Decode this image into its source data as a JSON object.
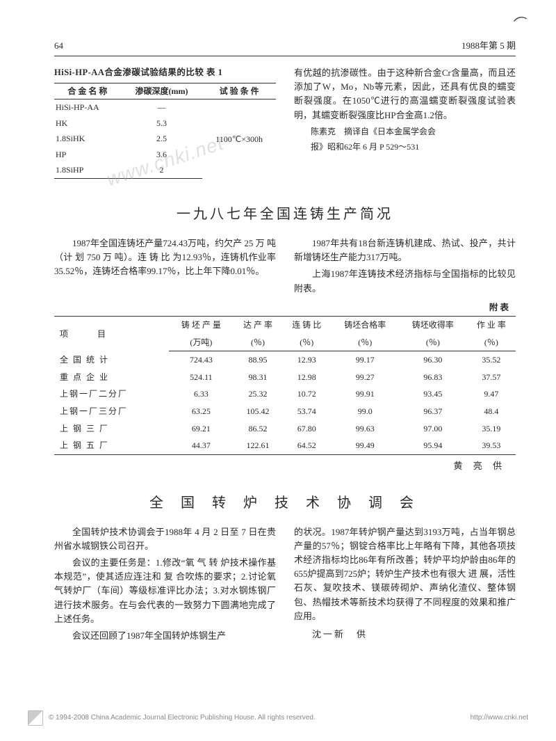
{
  "page_number": "64",
  "issue": "1988年第 5 期",
  "table1": {
    "title": "HiSi-HP-AA合金渗碳试验结果的比较 表 1",
    "headers": [
      "合 金 名 称",
      "渗碳深度(mm)",
      "试 验 条 件"
    ],
    "condition": "1100℃×300h",
    "rows": [
      {
        "name": "HiSi-HP-AA",
        "depth": "—"
      },
      {
        "name": "HK",
        "depth": "5.3"
      },
      {
        "name": "1.8SiHK",
        "depth": "2.5"
      },
      {
        "name": "HP",
        "depth": "3.6"
      },
      {
        "name": "1.8SiHP",
        "depth": "2"
      }
    ]
  },
  "top_right_paras": [
    "有优越的抗渗碳性。由于这种新合金Cr含量高，而且还添加了W，Mo，Nb等元素，因此，还具有优良的蠕变断裂强度。在1050℃进行的高温蠕变断裂强度试验表明，其蠕变断裂强度比HP合金高1.2倍。"
  ],
  "top_right_credit1": "陈素克　摘译自《日本金属学会会",
  "top_right_credit2": "报》昭和62年 6 月 P 529～531",
  "article1": {
    "title": "一九八七年全国连铸生产简况",
    "left_paras": [
      "1987年全国连铸坯产量724.43万吨，约欠产 25 万 吨（计 划 750 万 吨）。连 铸 比 为12.93％，连铸机作业率35.52％，连铸坯合格率99.17％，比上年下降0.01％。"
    ],
    "right_paras": [
      "1987年共有18台新连铸机建成、热试、投产，共计新增铸坯生产能力317万吨。",
      "上海1987年连铸技术经济指标与全国指标的比较见附表。"
    ],
    "appendix_label": "附 表",
    "byline": "黄 亮 供"
  },
  "table2": {
    "headers_row1": [
      "项　　目",
      "铸 坯 产 量",
      "达 产 率",
      "连 铸 比",
      "铸坯合格率",
      "铸坯收得率",
      "作 业 率"
    ],
    "headers_row2": [
      "",
      "(万吨)",
      "(％)",
      "(％)",
      "(％)",
      "(％)",
      "(％)"
    ],
    "rows": [
      [
        "全 国 统 计",
        "724.43",
        "88.95",
        "12.93",
        "99.17",
        "96.30",
        "35.52"
      ],
      [
        "重 点 企 业",
        "524.11",
        "98.31",
        "12.98",
        "99.27",
        "96.83",
        "37.57"
      ],
      [
        "上钢一厂二分厂",
        "6.33",
        "25.32",
        "10.72",
        "99.91",
        "93.45",
        "9.47"
      ],
      [
        "上钢一厂三分厂",
        "63.25",
        "105.42",
        "53.74",
        "99.0",
        "96.37",
        "48.4"
      ],
      [
        "上 钢 三 厂",
        "69.21",
        "86.52",
        "67.80",
        "99.63",
        "97.00",
        "35.19"
      ],
      [
        "上 钢 五 厂",
        "44.37",
        "122.61",
        "64.52",
        "99.49",
        "95.94",
        "39.53"
      ]
    ]
  },
  "article2": {
    "title": "全 国 转 炉 技 术 协 调 会",
    "left_paras": [
      "全国转炉技术协调会于1988年 4 月 2 日至 7 日在贵州省水城钢铁公司召开。",
      "会议的主要任务是：1.修改“氧 气 转 炉技术操作基本规范”，使其适应连注和 复 合吹炼的要求；2.讨论氧气转炉厂（车间）等级标准评比办法；3.对水钢炼钢厂进行技术服务。在与会代表的一致努力下圆满地完成了上述任务。",
      "会议还回顾了1987年全国转炉炼钢生产"
    ],
    "right_paras": [
      "的状况。1987年转炉钢产量达到3193万吨，占当年钢总产量的57％；钢锭合格率比上年略有下降，其他各项技术经济指标均比86年有所改善；转炉平均炉龄由86年的655炉提高到725炉；转炉生产技术也有很大 进 展，活性石灰、复吹技术、镁碳砖砌炉、声纳化渣仪、整体钢包、热帽技术等新技术均获得了不同程度的效果和推广应用。"
    ],
    "byline": "沈一新　供"
  },
  "footer_left": "© 1994-2008 China Academic Journal Electronic Publishing House. All rights reserved.",
  "footer_right": "http://www.cnki.net",
  "watermark": "www.cnki.net"
}
